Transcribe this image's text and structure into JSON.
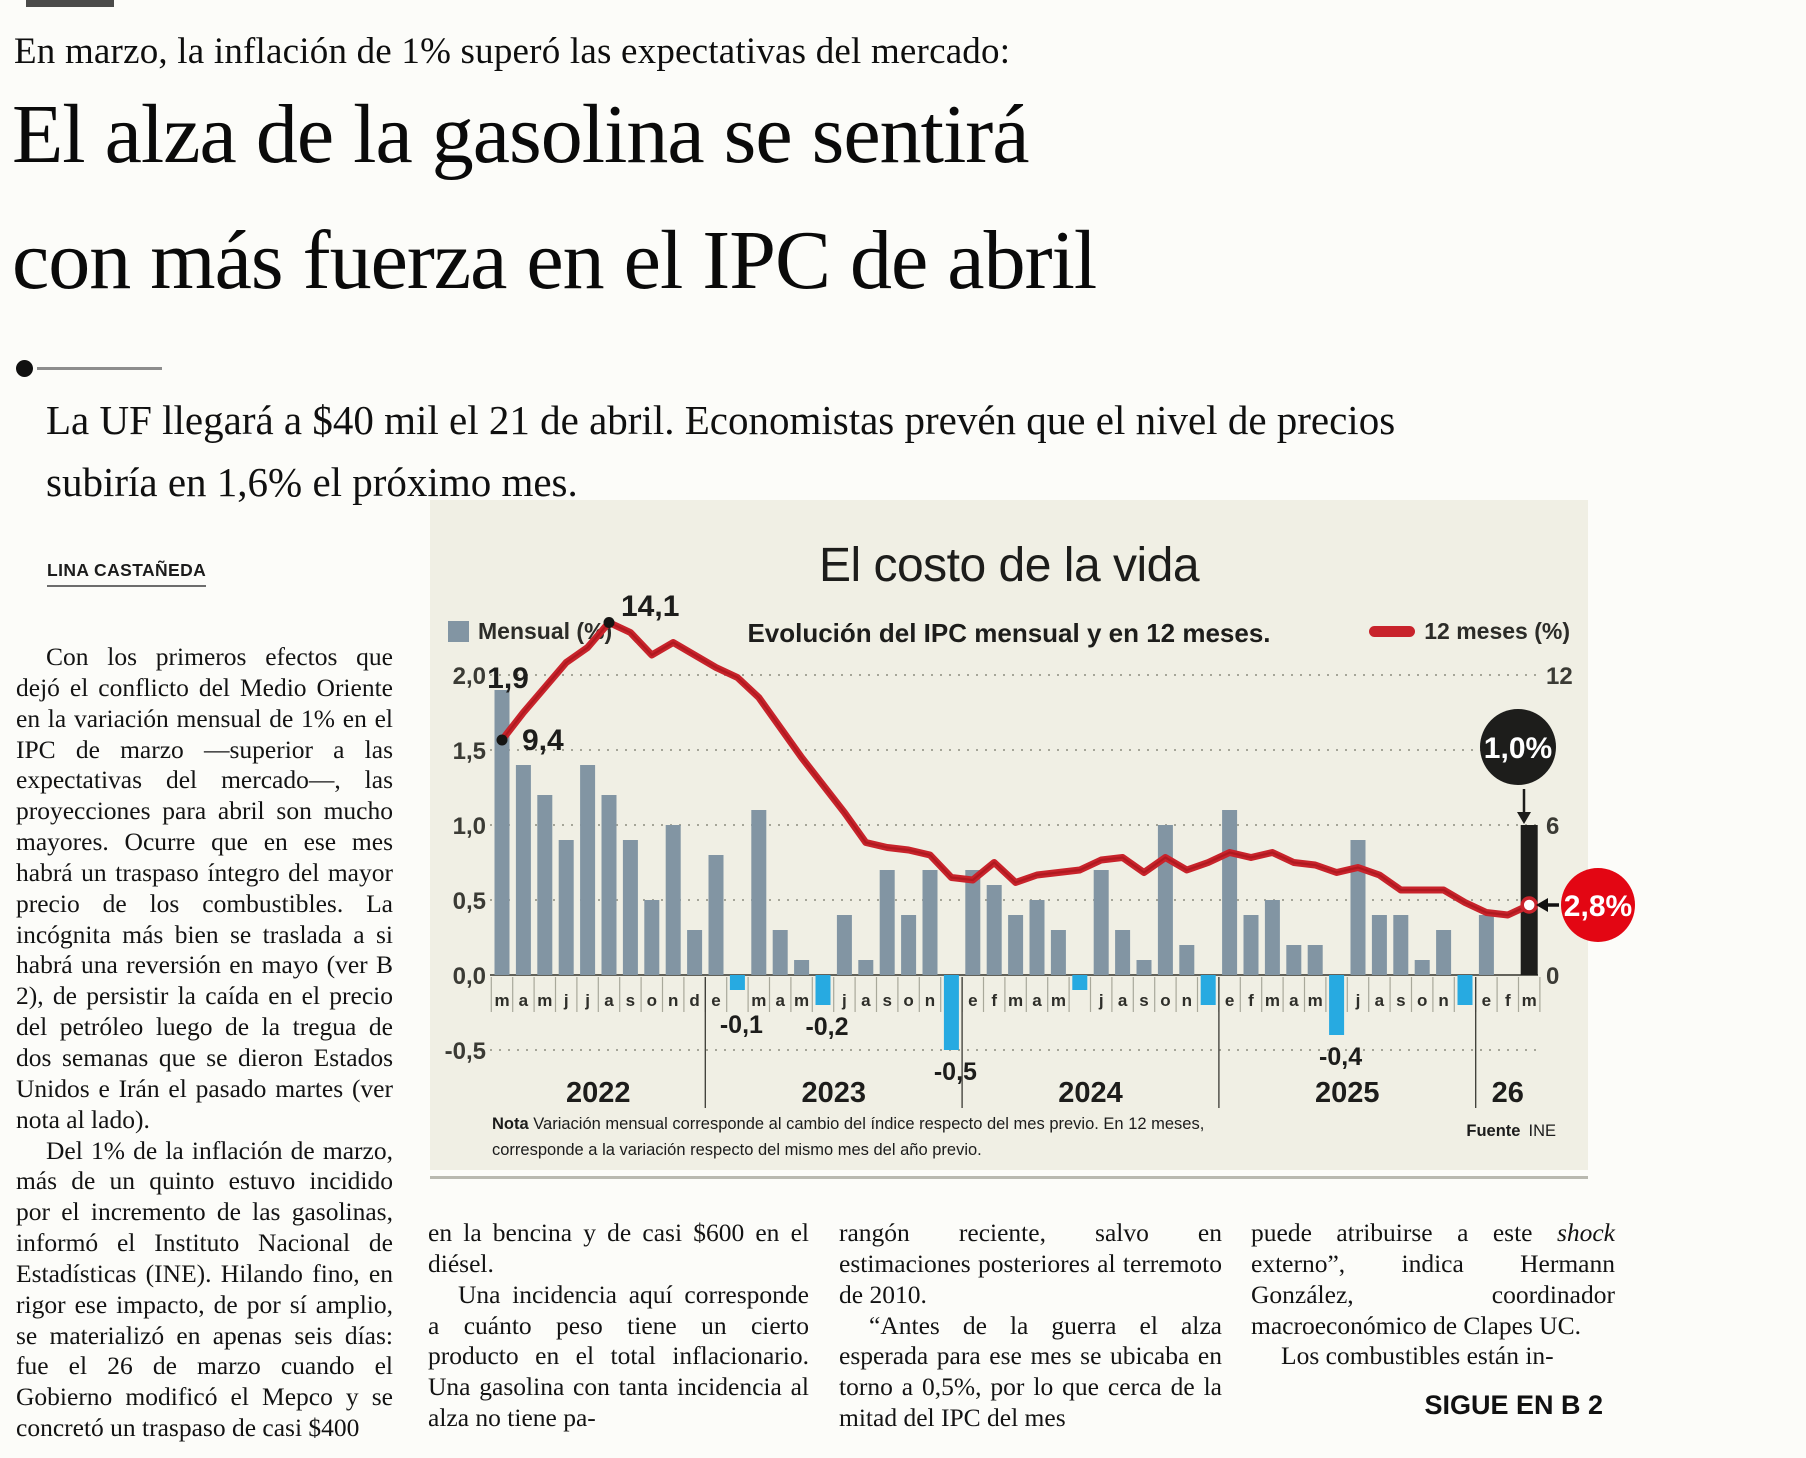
{
  "page": {
    "kicker": "En marzo, la inflación de 1% superó las expectativas del mercado:",
    "headline_line1": "El alza de la gasolina se sentirá",
    "headline_line2": "con más fuerza en el IPC de abril",
    "deck": "La UF llegará a $40 mil el 21 de abril. Economistas prevén que el nivel de precios subiría en 1,6% el próximo mes.",
    "byline": "LINA CASTAÑEDA",
    "continues": "SIGUE EN B 2"
  },
  "article": {
    "col1_p1": "Con los primeros efectos que dejó el conflicto del Medio Oriente en la variación mensual de 1% en el IPC de marzo —superior a las expectativas del mercado—, las proyecciones para abril son mucho mayores. Ocurre que en ese mes habrá un traspaso íntegro del mayor precio de los combustibles. La incógnita más bien se traslada a si habrá una reversión en mayo (ver B 2), de persistir la caída en el precio del petróleo luego de la tregua de dos semanas que se dieron Estados Unidos e Irán el pasado martes (ver nota al lado).",
    "col1_p2": "Del 1% de la inflación de marzo, más de un quinto estuvo incidido por el incremento de las gasolinas, informó el Instituto Nacional de Estadísticas (INE). Hilando fino, en rigor ese impacto, de por sí amplio, se materializó en apenas seis días: fue el 26 de marzo cuando el Gobierno modificó el Mepco y se concretó un traspaso de casi $400",
    "col2_p1": "en la bencina y de casi $600 en el diésel.",
    "col2_p2": "Una incidencia aquí corresponde a cuánto peso tiene un cierto producto en el total inflacionario. Una gasolina con tanta incidencia al alza no tiene pa-",
    "col3_p1": "rangón reciente, salvo en estimaciones posteriores al terremoto de 2010.",
    "col3_p2": "“Antes de la guerra el alza esperada para ese mes se ubicaba en torno a 0,5%, por lo que cerca de la mitad del IPC del mes",
    "col4_p1a": "puede atribuirse a este ",
    "col4_p1_italic": "shock",
    "col4_p1b": " externo”, indica Hermann González, coordinador macroeconómico de Clapes UC.",
    "col4_p2": "Los combustibles están in-"
  },
  "chart_data": {
    "type": "bar+line",
    "title": "El costo de la vida",
    "subtitle": "Evolución del IPC mensual y en 12 meses.",
    "legend": [
      {
        "label": "Mensual (%)",
        "type": "bar"
      },
      {
        "label": "12 meses (%)",
        "type": "line"
      }
    ],
    "left_axis": {
      "label": "Mensual (%)",
      "ticks": [
        "2,0",
        "1,5",
        "1,0",
        "0,5",
        "0,0",
        "-0,5"
      ],
      "values": [
        2.0,
        1.5,
        1.0,
        0.5,
        0.0,
        -0.5
      ]
    },
    "right_axis": {
      "label": "12 meses (%)",
      "ticks": [
        "12",
        "6",
        "0"
      ],
      "values": [
        12,
        6,
        0
      ]
    },
    "years": [
      {
        "label": "2022",
        "months": [
          "m",
          "a",
          "m",
          "j",
          "j",
          "a",
          "s",
          "o",
          "n",
          "d"
        ],
        "monthly": [
          1.9,
          1.4,
          1.2,
          0.9,
          1.4,
          1.2,
          0.9,
          0.5,
          1.0,
          0.3
        ],
        "annual": [
          9.4,
          10.5,
          11.5,
          12.5,
          13.1,
          14.1,
          13.7,
          12.8,
          13.3,
          12.8
        ]
      },
      {
        "label": "2023",
        "months": [
          "e",
          "f",
          "m",
          "a",
          "m",
          "j",
          "j",
          "a",
          "s",
          "o",
          "n",
          "d"
        ],
        "monthly": [
          0.8,
          -0.1,
          1.1,
          0.3,
          0.1,
          -0.2,
          0.4,
          0.1,
          0.7,
          0.4,
          0.7,
          -0.5
        ],
        "annual": [
          12.3,
          11.9,
          11.1,
          9.9,
          8.7,
          7.6,
          6.5,
          5.3,
          5.1,
          5.0,
          4.8,
          3.9
        ]
      },
      {
        "label": "2024",
        "months": [
          "e",
          "f",
          "m",
          "a",
          "m",
          "j",
          "j",
          "a",
          "s",
          "o",
          "n",
          "d"
        ],
        "monthly": [
          0.7,
          0.6,
          0.4,
          0.5,
          0.3,
          -0.1,
          0.7,
          0.3,
          0.1,
          1.0,
          0.2,
          -0.2
        ],
        "annual": [
          3.8,
          4.5,
          3.7,
          4.0,
          4.1,
          4.2,
          4.6,
          4.7,
          4.1,
          4.7,
          4.2,
          4.5
        ]
      },
      {
        "label": "2025",
        "months": [
          "e",
          "f",
          "m",
          "a",
          "m",
          "j",
          "j",
          "a",
          "s",
          "o",
          "n",
          "d"
        ],
        "monthly": [
          1.1,
          0.4,
          0.5,
          0.2,
          0.2,
          -0.4,
          0.9,
          0.4,
          0.4,
          0.1,
          0.3,
          -0.2
        ],
        "annual": [
          4.9,
          4.7,
          4.9,
          4.5,
          4.4,
          4.1,
          4.3,
          4.0,
          3.4,
          3.4,
          3.4,
          2.9
        ]
      },
      {
        "label": "26",
        "months": [
          "e",
          "f",
          "m"
        ],
        "monthly": [
          0.4,
          0.0,
          1.0
        ],
        "annual": [
          2.5,
          2.4,
          2.8
        ]
      }
    ],
    "annotations": {
      "first_bar_label": "1,9",
      "line_start_label": "9,4",
      "line_peak_label": "14,1",
      "peak_index": 5,
      "negative_labels": [
        {
          "year": 1,
          "month": 1,
          "text": "-0,1"
        },
        {
          "year": 1,
          "month": 5,
          "text": "-0,2"
        },
        {
          "year": 1,
          "month": 11,
          "text": "-0,5"
        },
        {
          "year": 3,
          "month": 5,
          "text": "-0,4"
        }
      ],
      "final_bar_badge": "1,0%",
      "line_end_badge": "2,8%"
    },
    "note_label": "Nota",
    "note_text": "Variación mensual corresponde al cambio del índice respecto del mes previo. En 12 meses, corresponde a la variación respecto del mismo mes del año previo.",
    "source_label": "Fuente",
    "source": "INE",
    "colors": {
      "bar": "#8295a3",
      "bar_negative": "#27aae1",
      "bar_final": "#1d1d1b",
      "line": "#c8232b",
      "line_core": "#9c1218",
      "panel": "#f0efe4",
      "badge_black": "#1d1d1b",
      "badge_red": "#e30613"
    }
  }
}
